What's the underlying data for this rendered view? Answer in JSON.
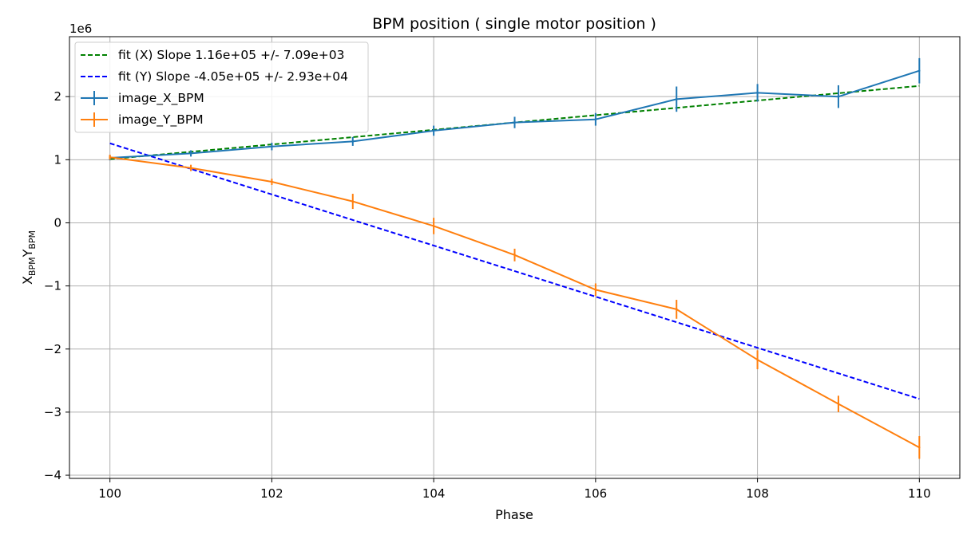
{
  "chart_data": {
    "type": "line",
    "title": "BPM position ( single motor  position )",
    "xlabel": "Phase",
    "ylabel_base1": "X",
    "ylabel_sub1": "BPM",
    "ylabel_base2": "Y",
    "ylabel_sub2": "BPM",
    "y_offset_label": "1e6",
    "y_scale": 1000000,
    "xlim": [
      99.5,
      110.5
    ],
    "ylim": [
      -4.05,
      2.95
    ],
    "x_ticks": [
      100,
      102,
      104,
      106,
      108,
      110
    ],
    "y_ticks": [
      -4,
      -3,
      -2,
      -1,
      0,
      1,
      2
    ],
    "y_tick_labels": [
      "−4",
      "−3",
      "−2",
      "−1",
      "0",
      "1",
      "2"
    ],
    "grid": true,
    "legend_position": "upper-left",
    "x": [
      100,
      101,
      102,
      103,
      104,
      105,
      106,
      107,
      108,
      109,
      110
    ],
    "series": [
      {
        "name": "image_X_BPM",
        "kind": "errorbar",
        "color": "#1f77b4",
        "values": [
          1.03,
          1.1,
          1.21,
          1.29,
          1.46,
          1.59,
          1.64,
          1.96,
          2.06,
          2.0,
          2.41
        ],
        "errors": [
          0.04,
          0.05,
          0.06,
          0.07,
          0.08,
          0.09,
          0.1,
          0.2,
          0.14,
          0.18,
          0.2
        ]
      },
      {
        "name": "image_Y_BPM",
        "kind": "errorbar",
        "color": "#ff7f0e",
        "values": [
          1.04,
          0.87,
          0.65,
          0.34,
          -0.05,
          -0.51,
          -1.06,
          -1.37,
          -2.17,
          -2.87,
          -3.56
        ],
        "errors": [
          0.04,
          0.05,
          0.05,
          0.12,
          0.13,
          0.1,
          0.1,
          0.15,
          0.15,
          0.13,
          0.18
        ]
      },
      {
        "name": "fit (X) Slope 1.16e+05 +/- 7.09e+03",
        "kind": "fit",
        "color": "#008000",
        "x": [
          100,
          110
        ],
        "values": [
          1.01,
          2.17
        ]
      },
      {
        "name": "fit (Y) Slope -4.05e+05 +/- 2.93e+04",
        "kind": "fit",
        "color": "#0000ff",
        "x": [
          100,
          110
        ],
        "values": [
          1.26,
          -2.79
        ]
      }
    ],
    "legend_order": [
      2,
      3,
      0,
      1
    ]
  }
}
